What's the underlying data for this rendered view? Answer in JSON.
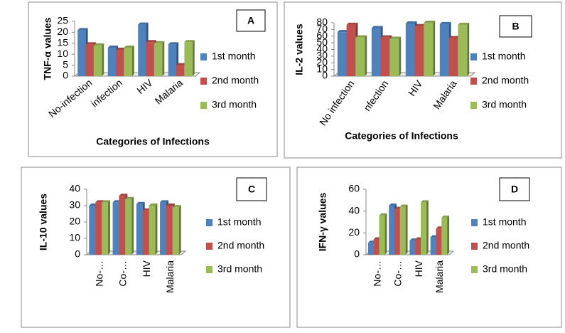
{
  "chart_data": [
    {
      "type": "bar",
      "panel": "A",
      "y_label": "TNF-α values",
      "x_label": "Categories of Infections",
      "categories": [
        "No-infection",
        "infection",
        "HIV",
        "Malaria"
      ],
      "series": [
        {
          "name": "1st month",
          "color": "#4f81bd",
          "values": [
            21,
            13,
            23.5,
            14.5
          ]
        },
        {
          "name": "2nd month",
          "color": "#c0504d",
          "values": [
            14.5,
            12,
            15.5,
            5
          ]
        },
        {
          "name": "3rd month",
          "color": "#9bbb59",
          "values": [
            14,
            13,
            15,
            15.5
          ]
        }
      ],
      "ylim": [
        0,
        25
      ],
      "yticks": [
        0,
        5,
        10,
        15,
        20,
        25
      ]
    },
    {
      "type": "bar",
      "panel": "B",
      "y_label": "IL-2 values",
      "x_label": "Categories of Infections",
      "categories": [
        "No infection",
        "nfection",
        "HIV",
        "Malaria"
      ],
      "series": [
        {
          "name": "1st month",
          "color": "#4f81bd",
          "values": [
            66,
            72,
            79,
            78
          ]
        },
        {
          "name": "2nd month",
          "color": "#c0504d",
          "values": [
            77,
            58,
            75,
            57
          ]
        },
        {
          "name": "3rd month",
          "color": "#9bbb59",
          "values": [
            58,
            56,
            80,
            77
          ]
        }
      ],
      "ylim": [
        0,
        80
      ],
      "yticks": [
        0,
        10,
        20,
        30,
        40,
        50,
        60,
        70,
        80
      ]
    },
    {
      "type": "bar",
      "panel": "C",
      "y_label": "IL-10 values",
      "categories": [
        "No-…",
        "Co-…",
        "HIV",
        "Malaria"
      ],
      "series": [
        {
          "name": "1st month",
          "color": "#4f81bd",
          "values": [
            30,
            32,
            31,
            32
          ]
        },
        {
          "name": "2nd month",
          "color": "#c0504d",
          "values": [
            32,
            36,
            27,
            30
          ]
        },
        {
          "name": "3rd month",
          "color": "#9bbb59",
          "values": [
            32,
            34,
            30,
            29
          ]
        }
      ],
      "ylim": [
        0,
        40
      ],
      "yticks": [
        0,
        10,
        20,
        30,
        40
      ]
    },
    {
      "type": "bar",
      "panel": "D",
      "y_label": "IFN-γ values",
      "categories": [
        "No-…",
        "Co-…",
        "HIV",
        "Malaria"
      ],
      "series": [
        {
          "name": "1st month",
          "color": "#4f81bd",
          "values": [
            11,
            45,
            13,
            16
          ]
        },
        {
          "name": "2nd month",
          "color": "#c0504d",
          "values": [
            14,
            42,
            14,
            24
          ]
        },
        {
          "name": "3rd month",
          "color": "#9bbb59",
          "values": [
            36,
            44,
            48,
            34
          ]
        }
      ],
      "ylim": [
        0,
        60
      ],
      "yticks": [
        0,
        20,
        40,
        60
      ]
    }
  ]
}
